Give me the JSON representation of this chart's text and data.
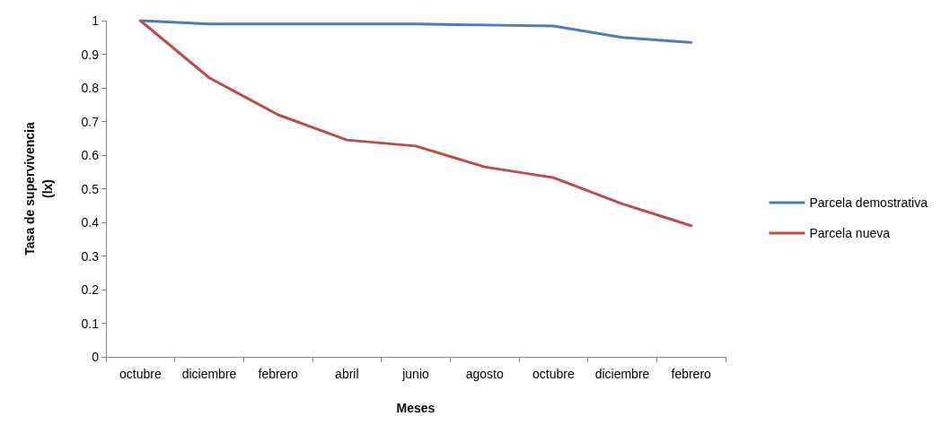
{
  "chart_data": {
    "type": "line",
    "xlabel": "Meses",
    "ylabel": "Tasa de supervivencia\n(lx)",
    "categories": [
      "octubre",
      "diciembre",
      "febrero",
      "abril",
      "junio",
      "agosto",
      "octubre",
      "diciembre",
      "febrero"
    ],
    "series": [
      {
        "name": "Parcela demostrativa",
        "color": "#4a7ebb",
        "values": [
          1,
          0.99,
          0.99,
          0.99,
          0.99,
          0.987,
          0.984,
          0.95,
          0.935
        ]
      },
      {
        "name": "Parcela nueva",
        "color": "#be4b48",
        "values": [
          1,
          0.83,
          0.72,
          0.645,
          0.627,
          0.565,
          0.533,
          0.455,
          0.39
        ]
      }
    ],
    "ylim": [
      0,
      1
    ],
    "yticks": [
      0,
      0.1,
      0.2,
      0.3,
      0.4,
      0.5,
      0.6,
      0.7,
      0.8,
      0.9,
      1
    ],
    "grid": false,
    "legend": "right",
    "marker": "none",
    "line_style": "solid"
  }
}
